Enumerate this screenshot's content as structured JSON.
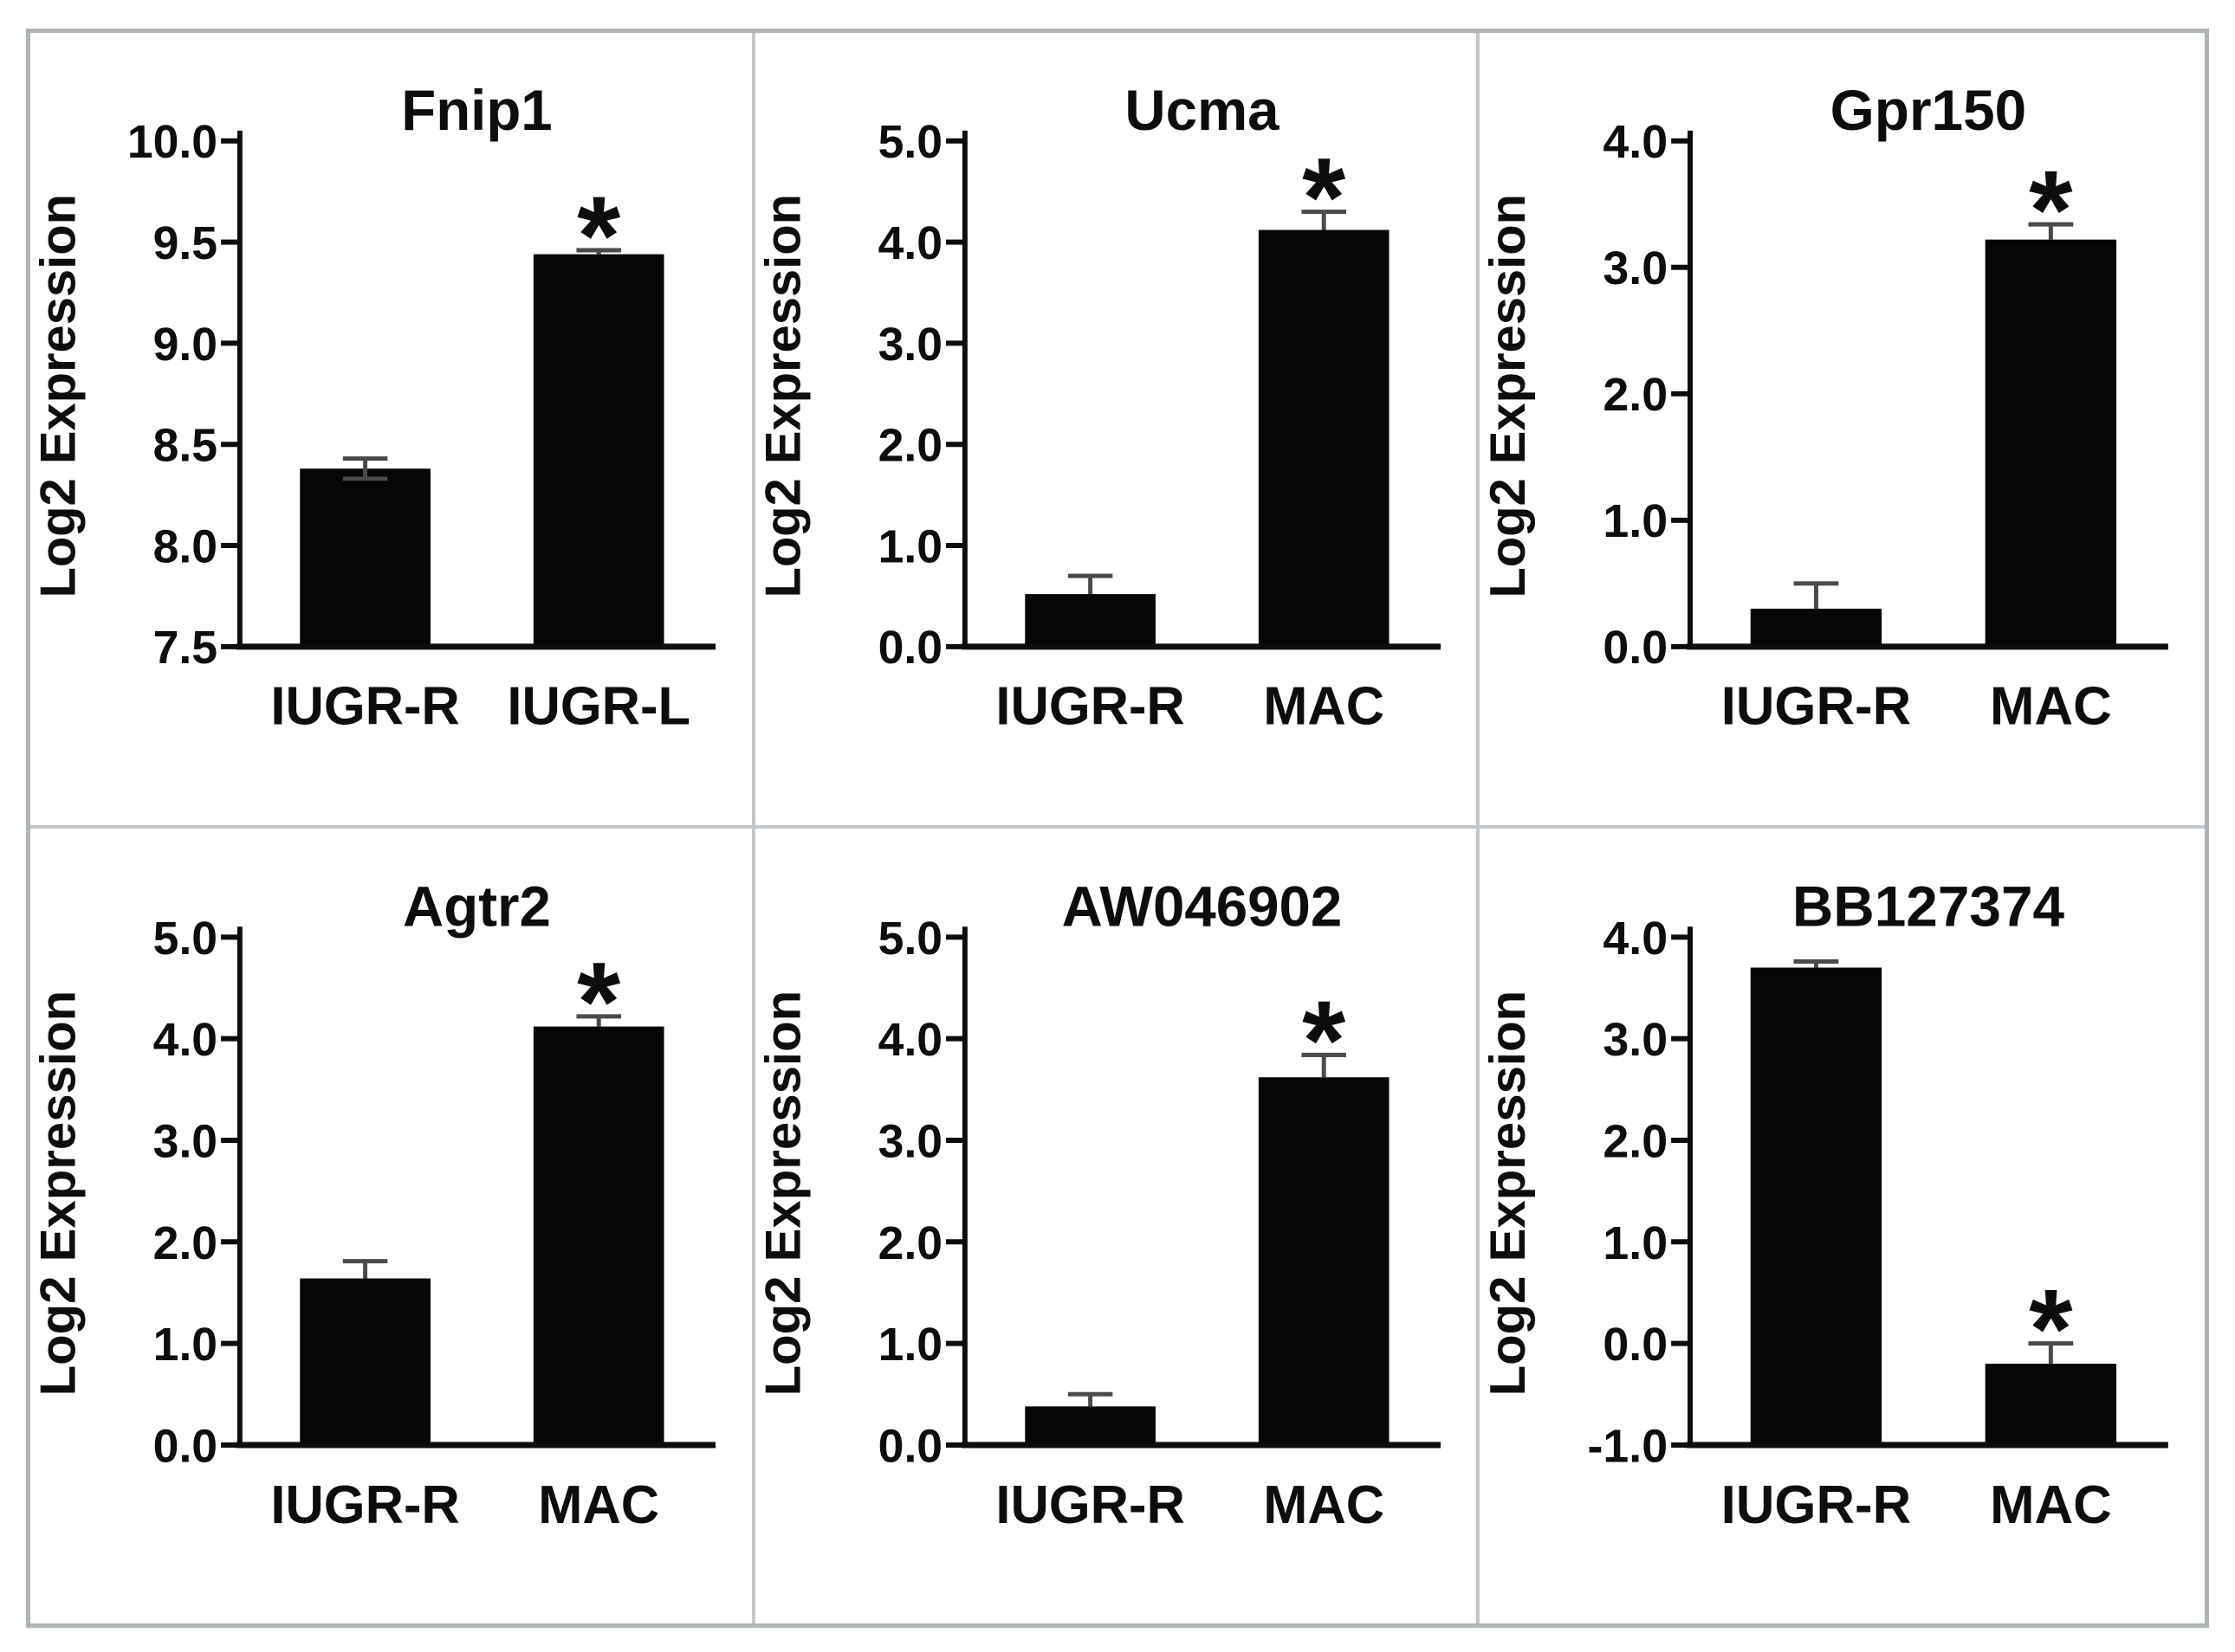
{
  "figure": {
    "description": "Six-panel bar chart figure of microarray gene expression validation",
    "background_color": "#ffffff",
    "frame_color": "#aeb3b6",
    "divider_color": "#c3c7c9",
    "bar_color": "#060606",
    "error_bar_color": "#4a4a4a",
    "text_color": "#0d0d0d",
    "significance_symbol": "*"
  },
  "chart_data": [
    {
      "type": "bar",
      "title": "Fnip1",
      "ylabel": "Log2 Expression",
      "xlabel": "",
      "categories": [
        "IUGR-R",
        "IUGR-L"
      ],
      "values": [
        8.38,
        9.44
      ],
      "errors_up": [
        0.05,
        0.02
      ],
      "errors_down": [
        0.05,
        0.0
      ],
      "ylim": [
        7.5,
        10.0
      ],
      "ytick_values": [
        10.0,
        9.5,
        9.0,
        8.5,
        8.0,
        7.5
      ],
      "ytick_labels": [
        "10.0",
        "9.5",
        "9.0",
        "8.5",
        "8.0",
        "7.5"
      ],
      "star": "*",
      "star_index": 1,
      "grid": false,
      "legend": "none"
    },
    {
      "type": "bar",
      "title": "Ucma",
      "ylabel": "Log2 Expression",
      "xlabel": "",
      "categories": [
        "IUGR-R",
        "MAC"
      ],
      "values": [
        0.52,
        4.12
      ],
      "errors_up": [
        0.18,
        0.18
      ],
      "errors_down": [
        0.0,
        0.0
      ],
      "ylim": [
        0.0,
        5.0
      ],
      "ytick_values": [
        5.0,
        4.0,
        3.0,
        2.0,
        1.0,
        0.0
      ],
      "ytick_labels": [
        "5.0",
        "4.0",
        "3.0",
        "2.0",
        "1.0",
        "0.0"
      ],
      "star": "*",
      "star_index": 1,
      "grid": false,
      "legend": "none"
    },
    {
      "type": "bar",
      "title": "Gpr150",
      "ylabel": "Log2 Expression",
      "xlabel": "",
      "categories": [
        "IUGR-R",
        "MAC"
      ],
      "values": [
        0.3,
        3.22
      ],
      "errors_up": [
        0.2,
        0.12
      ],
      "errors_down": [
        0.0,
        0.0
      ],
      "ylim": [
        0.0,
        4.0
      ],
      "ytick_values": [
        4.0,
        3.0,
        2.0,
        1.0,
        0.0
      ],
      "ytick_labels": [
        "4.0",
        "3.0",
        "2.0",
        "1.0",
        "0.0"
      ],
      "star": "*",
      "star_index": 1,
      "grid": false,
      "legend": "none"
    },
    {
      "type": "bar",
      "title": "Agtr2",
      "ylabel": "Log2 Expression",
      "xlabel": "",
      "categories": [
        "IUGR-R",
        "MAC"
      ],
      "values": [
        1.64,
        4.12
      ],
      "errors_up": [
        0.17,
        0.1
      ],
      "errors_down": [
        0.0,
        0.0
      ],
      "ylim": [
        0.0,
        5.0
      ],
      "ytick_values": [
        5.0,
        4.0,
        3.0,
        2.0,
        1.0,
        0.0
      ],
      "ytick_labels": [
        "5.0",
        "4.0",
        "3.0",
        "2.0",
        "1.0",
        "0.0"
      ],
      "star": "*",
      "star_index": 1,
      "grid": false,
      "legend": "none"
    },
    {
      "type": "bar",
      "title": "AW046902",
      "ylabel": "Log2 Expression",
      "xlabel": "",
      "categories": [
        "IUGR-R",
        "MAC"
      ],
      "values": [
        0.38,
        3.62
      ],
      "errors_up": [
        0.12,
        0.22
      ],
      "errors_down": [
        0.0,
        0.0
      ],
      "ylim": [
        0.0,
        5.0
      ],
      "ytick_values": [
        5.0,
        4.0,
        3.0,
        2.0,
        1.0,
        0.0
      ],
      "ytick_labels": [
        "5.0",
        "4.0",
        "3.0",
        "2.0",
        "1.0",
        "0.0"
      ],
      "star": "*",
      "star_index": 1,
      "grid": false,
      "legend": "none"
    },
    {
      "type": "bar",
      "title": "BB127374",
      "ylabel": "Log2 Expression",
      "xlabel": "",
      "categories": [
        "IUGR-R",
        "MAC"
      ],
      "values": [
        3.7,
        -0.2
      ],
      "errors_up": [
        0.06,
        0.2
      ],
      "errors_down": [
        0.0,
        0.0
      ],
      "ylim": [
        -1.0,
        4.0
      ],
      "ytick_values": [
        4.0,
        3.0,
        2.0,
        1.0,
        0.0,
        -1.0
      ],
      "ytick_labels": [
        "4.0",
        "3.0",
        "2.0",
        "1.0",
        "0.0",
        "-1.0"
      ],
      "star": "*",
      "star_index": 1,
      "grid": false,
      "legend": "none"
    }
  ]
}
